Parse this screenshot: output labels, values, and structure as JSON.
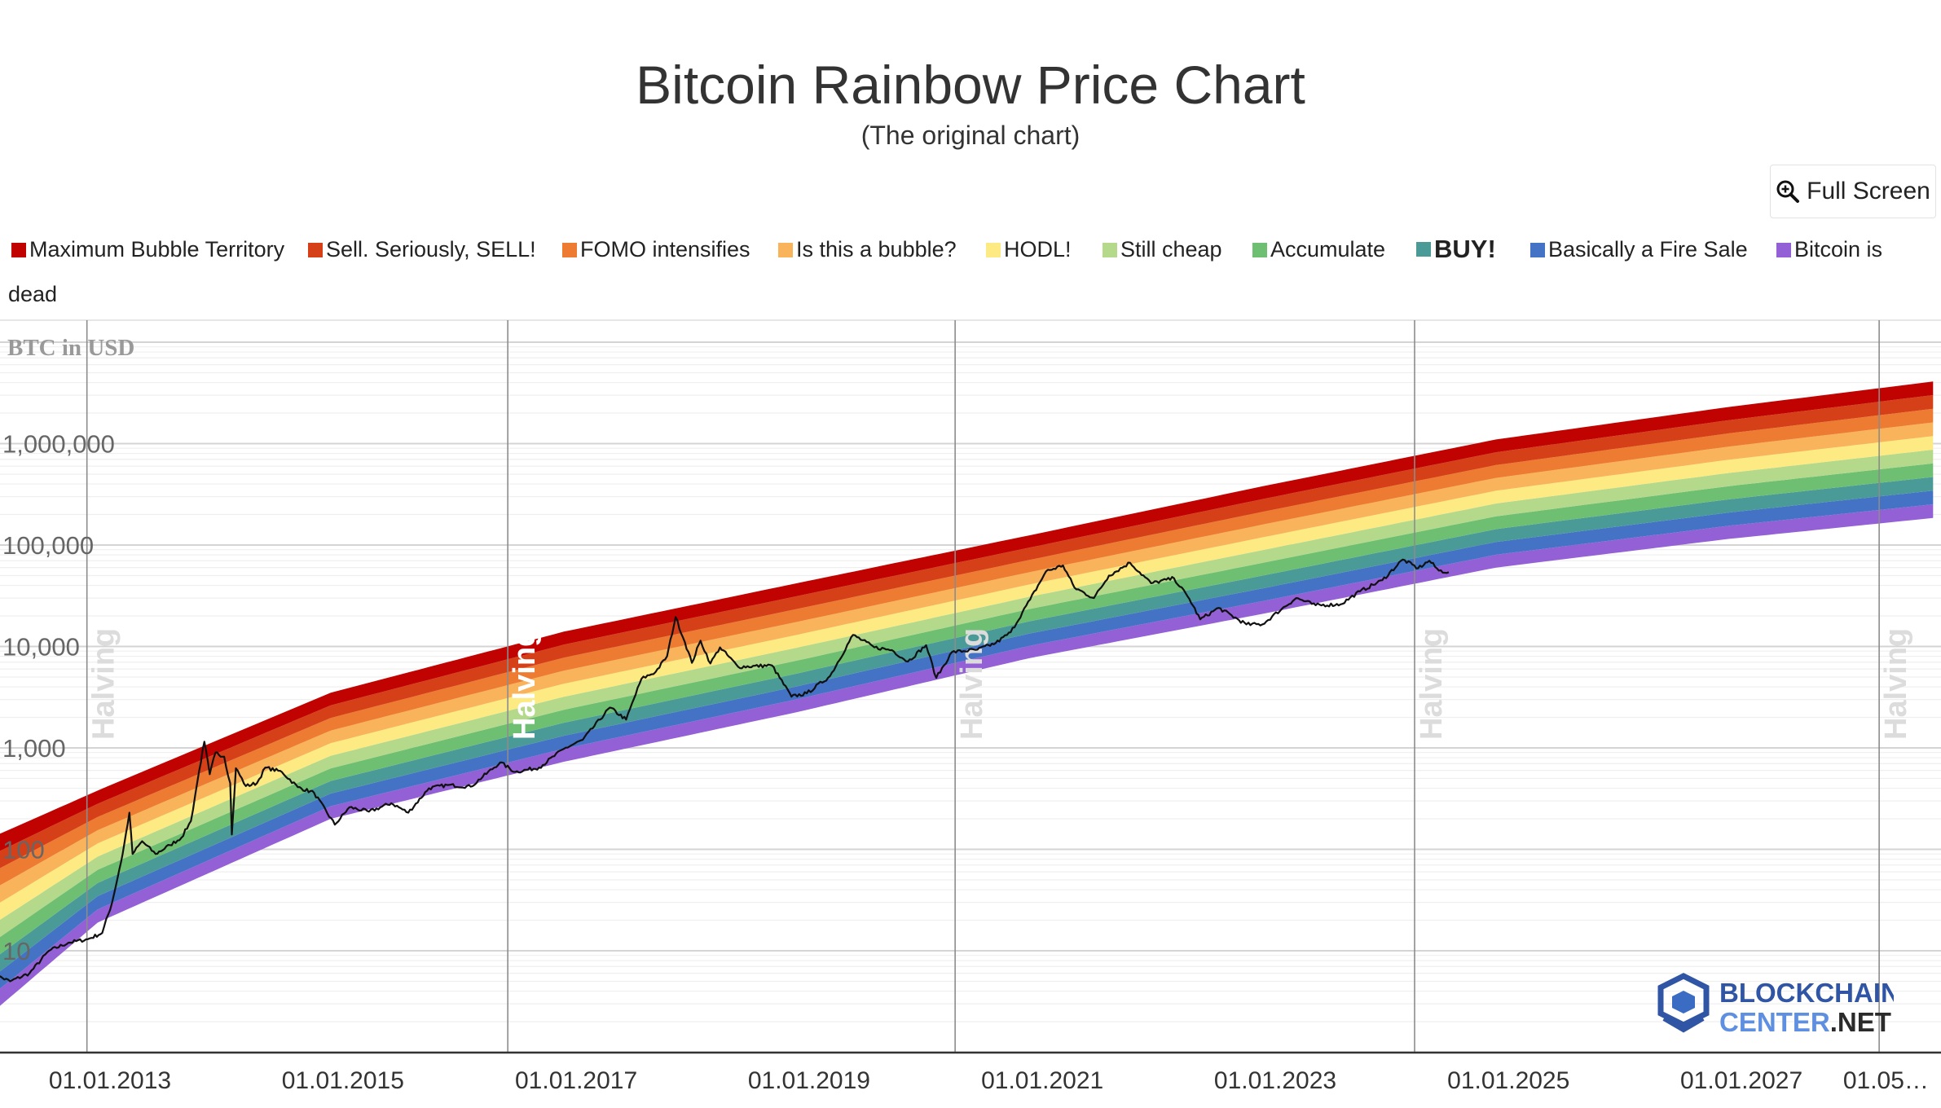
{
  "title": "Bitcoin Rainbow Price Chart",
  "subtitle": "(The original chart)",
  "toolbar": {
    "fullscreen_label": "Full Screen",
    "fullscreen_icon": "zoom-in-icon"
  },
  "legend": {
    "items": [
      {
        "label": "Maximum Bubble Territory",
        "color": "#c00200"
      },
      {
        "label": "Sell. Seriously, SELL!",
        "color": "#d64018"
      },
      {
        "label": "FOMO intensifies",
        "color": "#ed7b31"
      },
      {
        "label": "Is this a bubble?",
        "color": "#f8b35b"
      },
      {
        "label": "HODL!",
        "color": "#fdea83"
      },
      {
        "label": "Still cheap",
        "color": "#b4d98b"
      },
      {
        "label": "Accumulate",
        "color": "#6fbf73"
      },
      {
        "label": "BUY!",
        "color": "#4a9a97"
      },
      {
        "label": "Basically a Fire Sale",
        "color": "#4472c4"
      },
      {
        "label": "Bitcoin is",
        "color": "#9360d6"
      }
    ],
    "wrap_text": "dead"
  },
  "logo": {
    "line1": "BLOCKCHAIN",
    "line2a": "CENTER",
    "line2b": ".NET"
  },
  "chart_data": {
    "type": "area",
    "title": "Bitcoin Rainbow Price Chart",
    "subtitle": "(The original chart)",
    "ylabel": "BTC in USD",
    "yscale": "log",
    "ylim": [
      1,
      10000000
    ],
    "y_tick_labels": [
      "1,000,000",
      "100,000",
      "10,000",
      "1,000",
      "100",
      "10"
    ],
    "x_tick_labels": [
      "01.01.2013",
      "01.01.2015",
      "01.01.2017",
      "01.01.2019",
      "01.01.2021",
      "01.01.2023",
      "01.01.2025",
      "01.01.2027",
      "01.05…"
    ],
    "xlim": [
      "2012-02-01",
      "2028-10-01"
    ],
    "halving_label": "Halving",
    "halvings": [
      "2012-11-28",
      "2016-07-09",
      "2020-05-11",
      "2024-04-20",
      "2028-04-15"
    ],
    "grid": true,
    "legend_position": "top",
    "bands": {
      "colors": [
        "#9360d6",
        "#4472c4",
        "#4a9a97",
        "#6fbf73",
        "#b4d98b",
        "#fdea83",
        "#f8b35b",
        "#ed7b31",
        "#d64018",
        "#c00200"
      ],
      "lower_edge": [
        {
          "x": "2012-02-01",
          "y": 2.4
        },
        {
          "x": "2013-01-01",
          "y": 19
        },
        {
          "x": "2015-01-01",
          "y": 200
        },
        {
          "x": "2017-01-01",
          "y": 730
        },
        {
          "x": "2019-01-01",
          "y": 2250
        },
        {
          "x": "2021-01-01",
          "y": 7700
        },
        {
          "x": "2023-01-01",
          "y": 21000
        },
        {
          "x": "2025-01-01",
          "y": 60000
        },
        {
          "x": "2027-01-01",
          "y": 115000
        },
        {
          "x": "2028-10-01",
          "y": 185000
        }
      ],
      "upper_edge": [
        {
          "x": "2012-02-01",
          "y": 130
        },
        {
          "x": "2013-01-01",
          "y": 380
        },
        {
          "x": "2015-01-01",
          "y": 3500
        },
        {
          "x": "2017-01-01",
          "y": 14000
        },
        {
          "x": "2019-01-01",
          "y": 42000
        },
        {
          "x": "2021-01-01",
          "y": 125000
        },
        {
          "x": "2023-01-01",
          "y": 380000
        },
        {
          "x": "2025-01-01",
          "y": 1100000
        },
        {
          "x": "2027-01-01",
          "y": 2300000
        },
        {
          "x": "2028-10-01",
          "y": 4100000
        }
      ]
    },
    "series": [
      {
        "color": "#111111",
        "points": [
          {
            "x": "2012-02-01",
            "y": 6
          },
          {
            "x": "2012-04-01",
            "y": 5
          },
          {
            "x": "2012-06-01",
            "y": 6
          },
          {
            "x": "2012-08-01",
            "y": 10
          },
          {
            "x": "2012-10-01",
            "y": 12
          },
          {
            "x": "2012-12-01",
            "y": 13
          },
          {
            "x": "2013-01-15",
            "y": 15
          },
          {
            "x": "2013-02-15",
            "y": 30
          },
          {
            "x": "2013-03-20",
            "y": 90
          },
          {
            "x": "2013-04-10",
            "y": 230
          },
          {
            "x": "2013-04-20",
            "y": 90
          },
          {
            "x": "2013-05-20",
            "y": 120
          },
          {
            "x": "2013-07-01",
            "y": 90
          },
          {
            "x": "2013-08-15",
            "y": 110
          },
          {
            "x": "2013-09-20",
            "y": 130
          },
          {
            "x": "2013-10-20",
            "y": 190
          },
          {
            "x": "2013-11-15",
            "y": 600
          },
          {
            "x": "2013-12-01",
            "y": 1150
          },
          {
            "x": "2013-12-18",
            "y": 550
          },
          {
            "x": "2014-01-05",
            "y": 900
          },
          {
            "x": "2014-02-01",
            "y": 820
          },
          {
            "x": "2014-02-20",
            "y": 450
          },
          {
            "x": "2014-02-25",
            "y": 140
          },
          {
            "x": "2014-03-10",
            "y": 630
          },
          {
            "x": "2014-04-10",
            "y": 420
          },
          {
            "x": "2014-05-15",
            "y": 450
          },
          {
            "x": "2014-06-10",
            "y": 640
          },
          {
            "x": "2014-08-01",
            "y": 580
          },
          {
            "x": "2014-09-20",
            "y": 410
          },
          {
            "x": "2014-11-10",
            "y": 360
          },
          {
            "x": "2015-01-14",
            "y": 175
          },
          {
            "x": "2015-03-01",
            "y": 260
          },
          {
            "x": "2015-05-01",
            "y": 235
          },
          {
            "x": "2015-07-10",
            "y": 285
          },
          {
            "x": "2015-09-01",
            "y": 230
          },
          {
            "x": "2015-11-05",
            "y": 400
          },
          {
            "x": "2016-01-01",
            "y": 430
          },
          {
            "x": "2016-03-15",
            "y": 415
          },
          {
            "x": "2016-06-15",
            "y": 720
          },
          {
            "x": "2016-08-01",
            "y": 580
          },
          {
            "x": "2016-10-15",
            "y": 640
          },
          {
            "x": "2017-01-01",
            "y": 980
          },
          {
            "x": "2017-03-01",
            "y": 1200
          },
          {
            "x": "2017-05-25",
            "y": 2500
          },
          {
            "x": "2017-07-15",
            "y": 1900
          },
          {
            "x": "2017-09-01",
            "y": 4800
          },
          {
            "x": "2017-10-15",
            "y": 5600
          },
          {
            "x": "2017-11-20",
            "y": 8000
          },
          {
            "x": "2017-12-17",
            "y": 19500
          },
          {
            "x": "2018-01-15",
            "y": 11000
          },
          {
            "x": "2018-02-06",
            "y": 6900
          },
          {
            "x": "2018-03-05",
            "y": 11400
          },
          {
            "x": "2018-04-05",
            "y": 6800
          },
          {
            "x": "2018-05-05",
            "y": 9800
          },
          {
            "x": "2018-07-01",
            "y": 6300
          },
          {
            "x": "2018-10-15",
            "y": 6500
          },
          {
            "x": "2018-12-15",
            "y": 3200
          },
          {
            "x": "2019-02-01",
            "y": 3450
          },
          {
            "x": "2019-04-15",
            "y": 5100
          },
          {
            "x": "2019-06-26",
            "y": 13000
          },
          {
            "x": "2019-09-01",
            "y": 9800
          },
          {
            "x": "2019-10-26",
            "y": 9200
          },
          {
            "x": "2019-12-15",
            "y": 7100
          },
          {
            "x": "2020-02-10",
            "y": 10300
          },
          {
            "x": "2020-03-13",
            "y": 4900
          },
          {
            "x": "2020-05-01",
            "y": 8800
          },
          {
            "x": "2020-07-20",
            "y": 9300
          },
          {
            "x": "2020-09-15",
            "y": 10800
          },
          {
            "x": "2020-11-01",
            "y": 13800
          },
          {
            "x": "2021-01-01",
            "y": 29000
          },
          {
            "x": "2021-02-20",
            "y": 55000
          },
          {
            "x": "2021-04-14",
            "y": 63000
          },
          {
            "x": "2021-05-20",
            "y": 38000
          },
          {
            "x": "2021-07-20",
            "y": 30000
          },
          {
            "x": "2021-09-05",
            "y": 50000
          },
          {
            "x": "2021-11-10",
            "y": 67000
          },
          {
            "x": "2022-01-15",
            "y": 42000
          },
          {
            "x": "2022-03-28",
            "y": 47000
          },
          {
            "x": "2022-05-15",
            "y": 29500
          },
          {
            "x": "2022-06-18",
            "y": 18500
          },
          {
            "x": "2022-08-15",
            "y": 24000
          },
          {
            "x": "2022-11-10",
            "y": 16500
          },
          {
            "x": "2022-12-30",
            "y": 16500
          },
          {
            "x": "2023-03-01",
            "y": 23500
          },
          {
            "x": "2023-04-15",
            "y": 30000
          },
          {
            "x": "2023-06-15",
            "y": 25500
          },
          {
            "x": "2023-09-01",
            "y": 26000
          },
          {
            "x": "2023-11-01",
            "y": 35000
          },
          {
            "x": "2024-01-10",
            "y": 45000
          },
          {
            "x": "2024-03-14",
            "y": 72000
          },
          {
            "x": "2024-05-01",
            "y": 59000
          },
          {
            "x": "2024-06-05",
            "y": 70000
          },
          {
            "x": "2024-07-05",
            "y": 56000
          },
          {
            "x": "2024-08-05",
            "y": 54000
          }
        ]
      }
    ]
  }
}
